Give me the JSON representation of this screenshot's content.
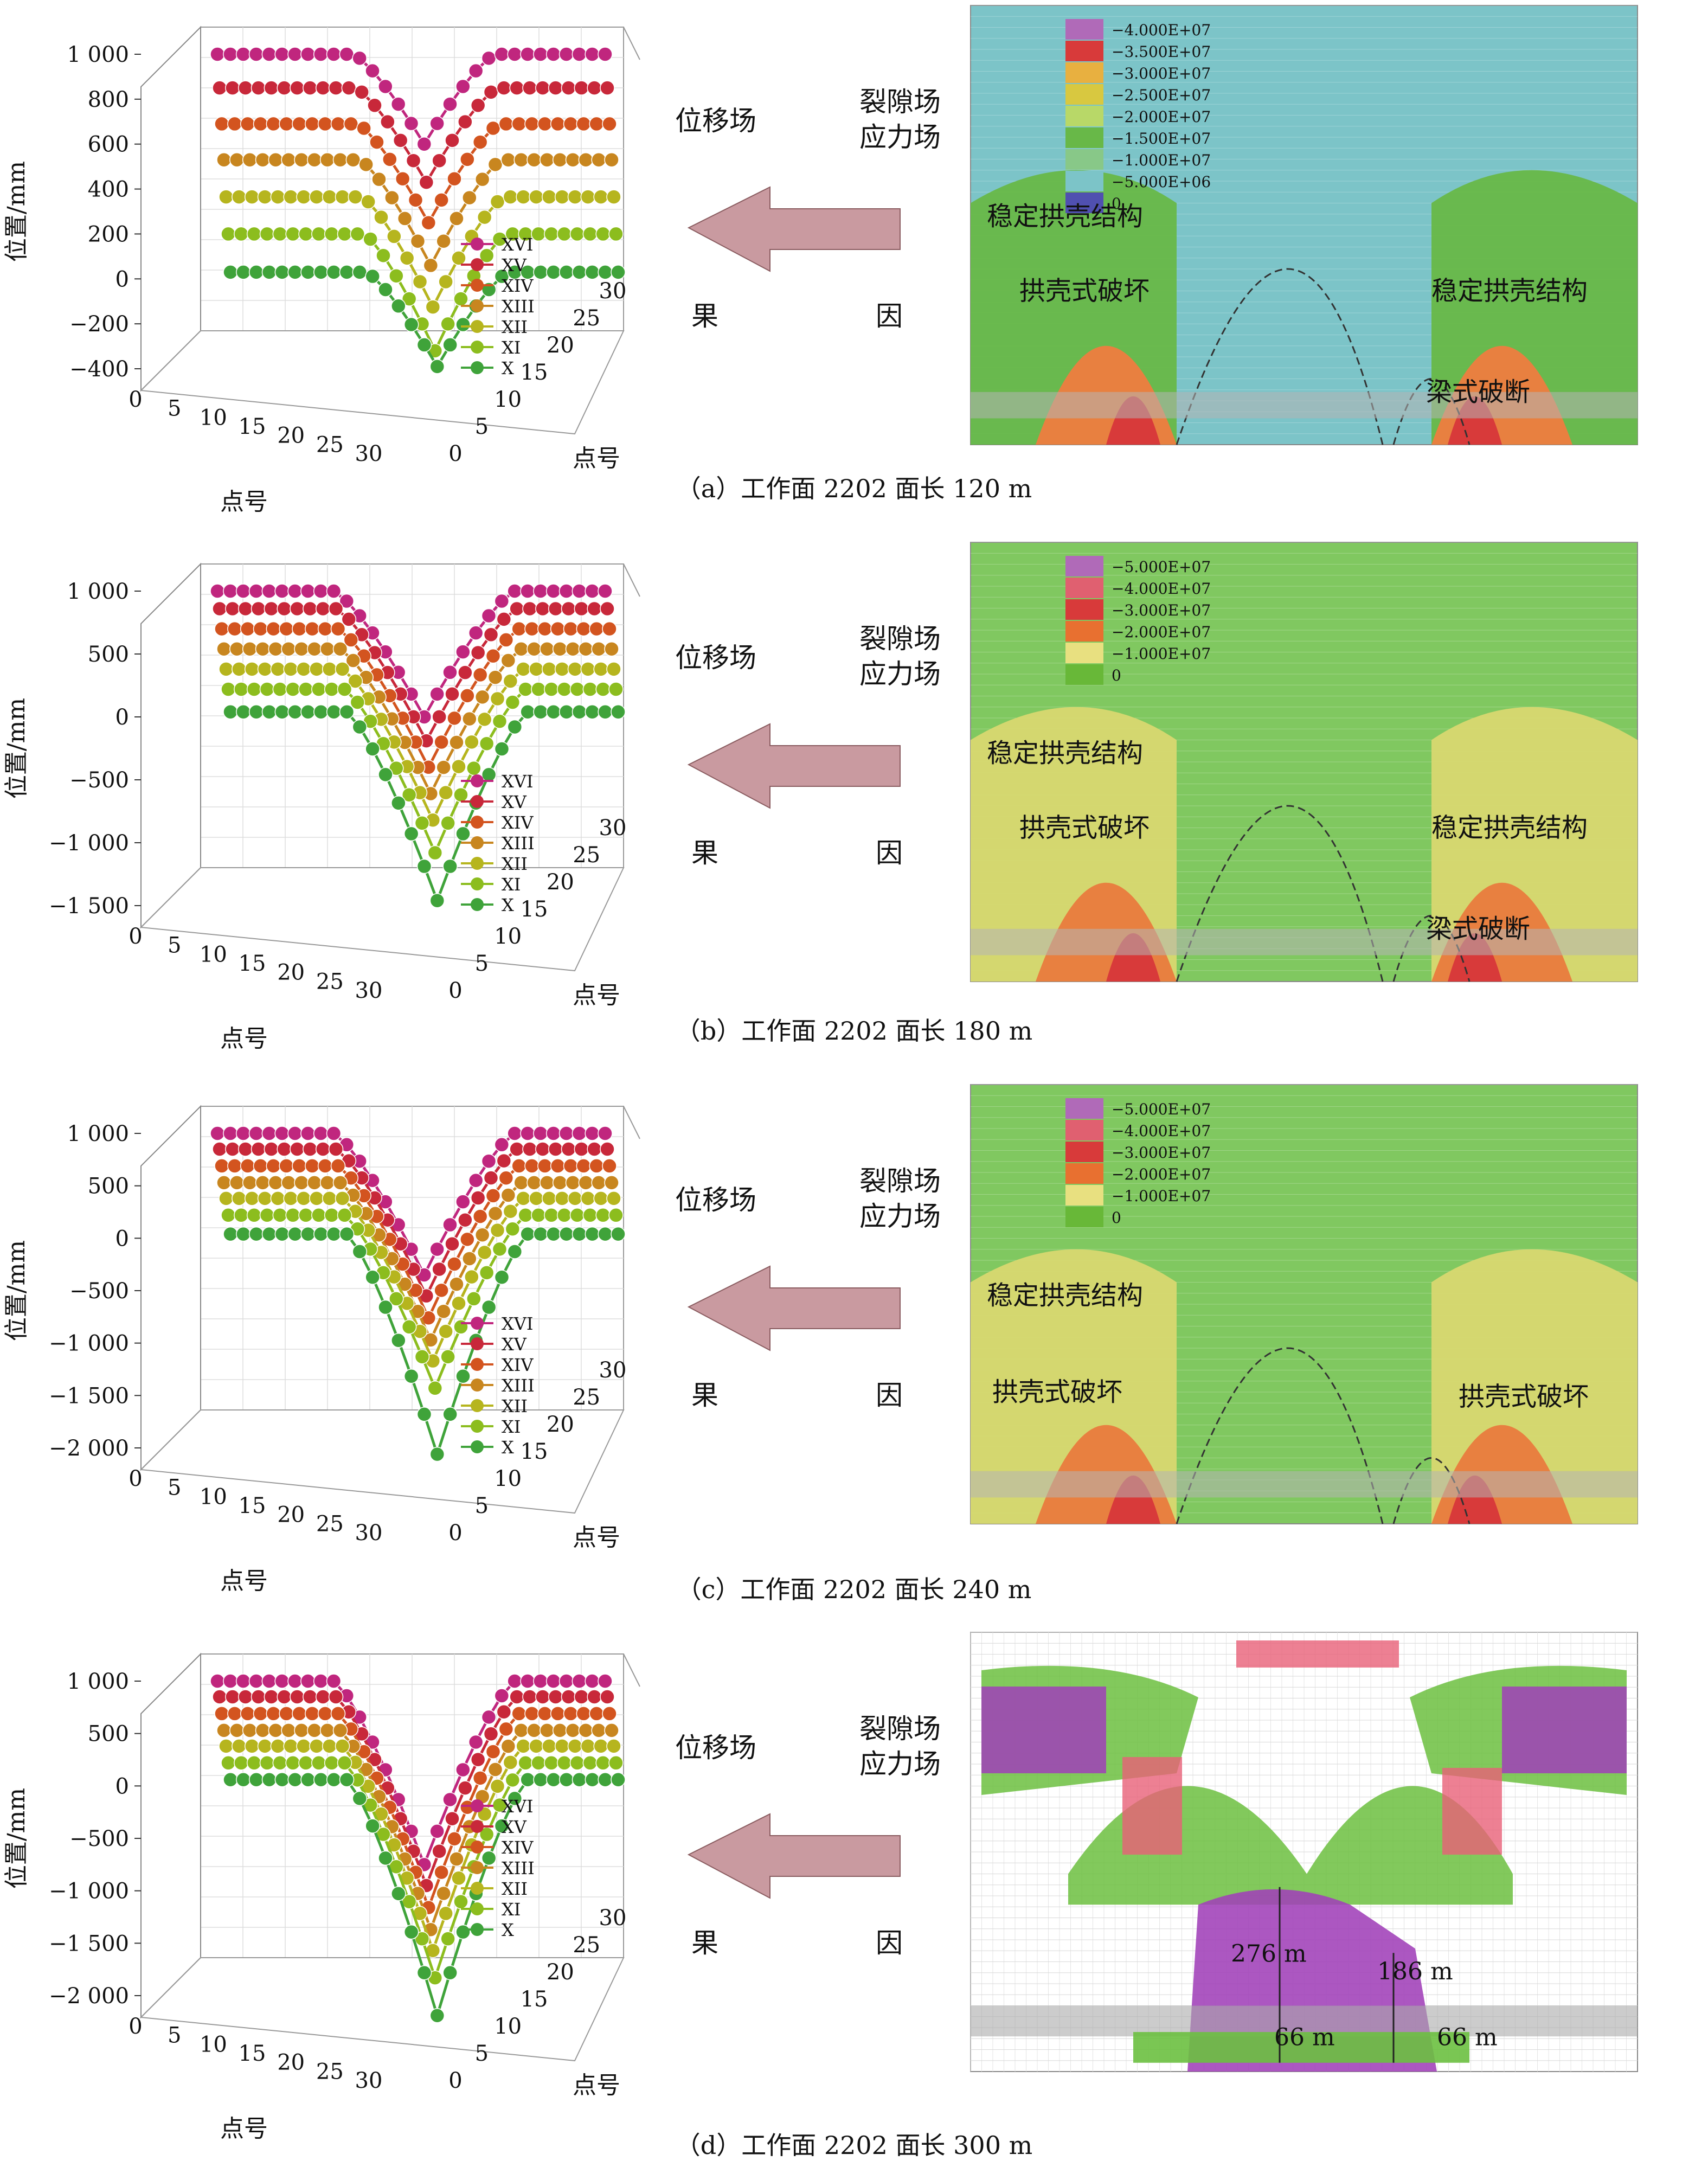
{
  "labels": {
    "displacement_field": "位移场",
    "fracture_field": "裂隙场",
    "stress_field": "应力场",
    "effect": "果",
    "cause": "因",
    "axis_y": "位置/mm",
    "axis_x": "点号"
  },
  "colors": {
    "XVI": "#c0267e",
    "XV": "#c8283a",
    "XIV": "#d3541f",
    "XIII": "#c8861f",
    "XII": "#b6b51e",
    "XI": "#8cbd1e",
    "X": "#3fa33a",
    "arrow": "#c99aa0"
  },
  "chart_data": [
    {
      "type": "line",
      "caption": "（a）工作面 2202 面长 120 m",
      "ylim": [
        -400,
        1000
      ],
      "yticks": [
        "1 000",
        "800",
        "600",
        "400",
        "200",
        "0",
        "−200",
        "−400"
      ],
      "ytick_values": [
        1000,
        800,
        600,
        400,
        200,
        0,
        -200,
        -400
      ],
      "xticks": [
        "0",
        "5",
        "10",
        "15",
        "20",
        "25",
        "30"
      ],
      "ztick_labels": [
        "0",
        "5",
        "10",
        "15",
        "20",
        "25",
        "30"
      ],
      "series": [
        {
          "name": "XVI",
          "offset": 1000,
          "depth": 400
        },
        {
          "name": "XV",
          "offset": 850,
          "depth": 420
        },
        {
          "name": "XIV",
          "offset": 690,
          "depth": 440
        },
        {
          "name": "XIII",
          "offset": 530,
          "depth": 470
        },
        {
          "name": "XII",
          "offset": 365,
          "depth": 490
        },
        {
          "name": "XI",
          "offset": 200,
          "depth": 520
        },
        {
          "name": "X",
          "offset": 30,
          "depth": 420
        }
      ],
      "stress_legend": [
        "−4.000E+07",
        "−3.500E+07",
        "−3.000E+07",
        "−2.500E+07",
        "−2.000E+07",
        "−1.500E+07",
        "−1.000E+07",
        "−5.000E+06",
        "0"
      ],
      "legend_colors": [
        "#b06ab8",
        "#d83a3a",
        "#e8b040",
        "#d8c840",
        "#b8d868",
        "#68b848",
        "#88c888",
        "#7cc4c8",
        "#5050b0"
      ],
      "annotations": [
        "稳定拱壳结构",
        "拱壳式破坏",
        "稳定拱壳结构",
        "梁式破断"
      ],
      "bg": "#7cc4c8"
    },
    {
      "type": "line",
      "caption": "（b）工作面 2202 面长 180 m",
      "ylim": [
        -1500,
        1000
      ],
      "yticks": [
        "1 000",
        "500",
        "0",
        "−500",
        "−1 000",
        "−1 500"
      ],
      "ytick_values": [
        1000,
        500,
        0,
        -500,
        -1000,
        -1500
      ],
      "xticks": [
        "0",
        "5",
        "10",
        "15",
        "20",
        "25",
        "30"
      ],
      "ztick_labels": [
        "0",
        "5",
        "10",
        "15",
        "20",
        "25",
        "30"
      ],
      "series": [
        {
          "name": "XVI",
          "offset": 1000,
          "depth": 1000
        },
        {
          "name": "XV",
          "offset": 860,
          "depth": 1050
        },
        {
          "name": "XIV",
          "offset": 700,
          "depth": 1100
        },
        {
          "name": "XIII",
          "offset": 540,
          "depth": 1150
        },
        {
          "name": "XII",
          "offset": 380,
          "depth": 1200
        },
        {
          "name": "XI",
          "offset": 220,
          "depth": 1300
        },
        {
          "name": "X",
          "offset": 40,
          "depth": 1500
        }
      ],
      "stress_legend": [
        "−5.000E+07",
        "−4.000E+07",
        "−3.000E+07",
        "−2.000E+07",
        "−1.000E+07",
        "0"
      ],
      "legend_colors": [
        "#b06ab8",
        "#e06070",
        "#d83a3a",
        "#e87030",
        "#e8e080",
        "#68b838"
      ],
      "annotations": [
        "稳定拱壳结构",
        "拱壳式破坏",
        "稳定拱壳结构",
        "梁式破断"
      ],
      "bg": "#80c860"
    },
    {
      "type": "line",
      "caption": "（c）工作面 2202 面长 240 m",
      "ylim": [
        -2000,
        1000
      ],
      "yticks": [
        "1 000",
        "500",
        "0",
        "−500",
        "−1 000",
        "−1 500",
        "−2 000"
      ],
      "ytick_values": [
        1000,
        500,
        0,
        -500,
        -1000,
        -1500,
        -2000
      ],
      "xticks": [
        "0",
        "5",
        "10",
        "15",
        "20",
        "25",
        "30"
      ],
      "ztick_labels": [
        "0",
        "5",
        "10",
        "15",
        "20",
        "25",
        "30"
      ],
      "series": [
        {
          "name": "XVI",
          "offset": 1000,
          "depth": 1350
        },
        {
          "name": "XV",
          "offset": 850,
          "depth": 1400
        },
        {
          "name": "XIV",
          "offset": 690,
          "depth": 1450
        },
        {
          "name": "XIII",
          "offset": 530,
          "depth": 1500
        },
        {
          "name": "XII",
          "offset": 380,
          "depth": 1550
        },
        {
          "name": "XI",
          "offset": 220,
          "depth": 1650
        },
        {
          "name": "X",
          "offset": 40,
          "depth": 2100
        }
      ],
      "stress_legend": [
        "−5.000E+07",
        "−4.000E+07",
        "−3.000E+07",
        "−2.000E+07",
        "−1.000E+07",
        "0"
      ],
      "legend_colors": [
        "#b06ab8",
        "#e06070",
        "#d83a3a",
        "#e87030",
        "#e8e080",
        "#68b838"
      ],
      "annotations": [
        "稳定拱壳结构",
        "拱壳式破坏",
        "拱壳式破坏"
      ],
      "bg": "#80c860"
    },
    {
      "type": "line",
      "caption": "（d）工作面 2202 面长 300 m",
      "ylim": [
        -2000,
        1000
      ],
      "yticks": [
        "1 000",
        "500",
        "0",
        "−500",
        "−1 000",
        "−1 500",
        "−2 000"
      ],
      "ytick_values": [
        1000,
        500,
        0,
        -500,
        -1000,
        -1500,
        -2000
      ],
      "xticks": [
        "0",
        "5",
        "10",
        "15",
        "20",
        "25",
        "30"
      ],
      "ztick_labels": [
        "0",
        "5",
        "10",
        "15",
        "20",
        "25",
        "30"
      ],
      "series": [
        {
          "name": "XVI",
          "offset": 1000,
          "depth": 1750
        },
        {
          "name": "XV",
          "offset": 850,
          "depth": 1800
        },
        {
          "name": "XIV",
          "offset": 690,
          "depth": 1850
        },
        {
          "name": "XIII",
          "offset": 530,
          "depth": 1900
        },
        {
          "name": "XII",
          "offset": 380,
          "depth": 1950
        },
        {
          "name": "XI",
          "offset": 220,
          "depth": 2050
        },
        {
          "name": "X",
          "offset": 60,
          "depth": 2250
        }
      ],
      "stress_legend": [],
      "legend_colors": [],
      "annotations": [],
      "dims": [
        "276 m",
        "186 m",
        "66 m",
        "66 m"
      ],
      "bg": "#ffffff"
    }
  ]
}
